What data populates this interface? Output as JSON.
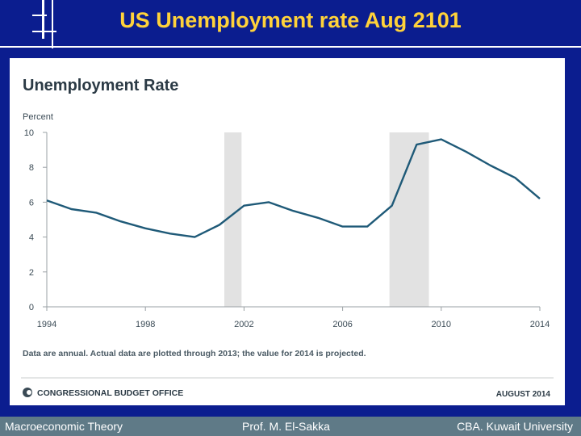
{
  "slide": {
    "title": "US Unemployment rate Aug 2101",
    "footer_left": "Macroeconomic Theory",
    "footer_center": "Prof. M. El-Sakka",
    "footer_right": "CBA. Kuwait University"
  },
  "chart_data": {
    "type": "line",
    "title": "Unemployment Rate",
    "ylabel": "Percent",
    "xlabel": "",
    "ylim": [
      0,
      10
    ],
    "xlim": [
      1994,
      2014
    ],
    "x_ticks": [
      "1994",
      "1998",
      "2002",
      "2006",
      "2010",
      "2014"
    ],
    "y_ticks": [
      "0",
      "2",
      "4",
      "6",
      "8",
      "10"
    ],
    "series": [
      {
        "x": [
          1994,
          1995,
          1996,
          1997,
          1998,
          1999,
          2000,
          2001,
          2002,
          2003,
          2004,
          2005,
          2006,
          2007,
          2008,
          2009,
          2010,
          2011,
          2012,
          2013,
          2014
        ],
        "values": [
          6.1,
          5.6,
          5.4,
          4.9,
          4.5,
          4.2,
          4.0,
          4.7,
          5.8,
          6.0,
          5.5,
          5.1,
          4.6,
          4.6,
          5.8,
          9.3,
          9.6,
          8.9,
          8.1,
          7.4,
          6.2
        ]
      }
    ],
    "recession_shading": [
      [
        2001.2,
        2001.9
      ],
      [
        2007.9,
        2009.5
      ]
    ],
    "line_color": "#1f5a78",
    "shading_color": "#e2e2e2",
    "note": "Data are annual. Actual data are plotted through 2013; the value for 2014 is projected.",
    "source": "CONGRESSIONAL BUDGET OFFICE",
    "date": "AUGUST 2014",
    "grid": false
  }
}
